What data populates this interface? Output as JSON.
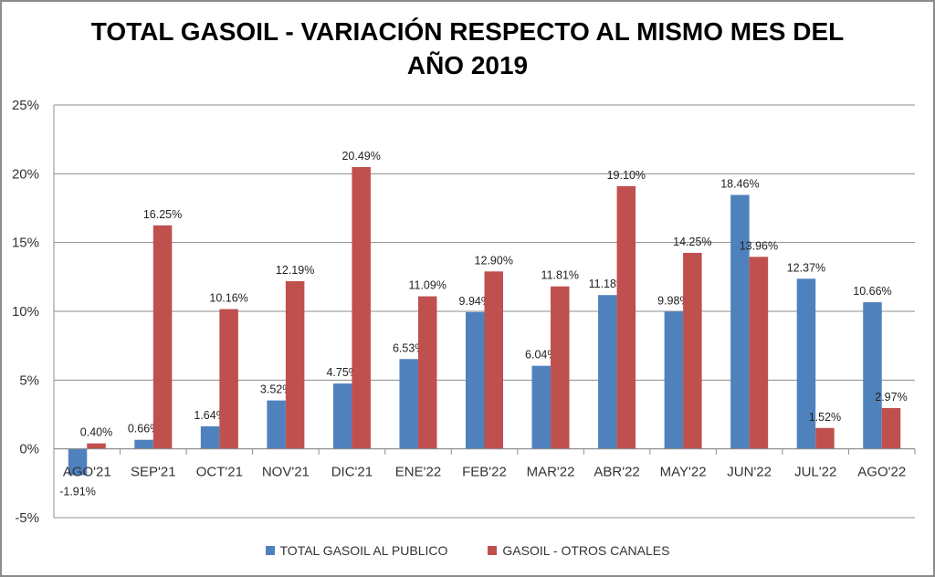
{
  "chart_data": {
    "type": "bar",
    "title_lines": [
      "TOTAL GASOIL - VARIACIÓN RESPECTO AL MISMO MES DEL",
      "AÑO 2019"
    ],
    "categories": [
      "AGO'21",
      "SEP'21",
      "OCT'21",
      "NOV'21",
      "DIC'21",
      "ENE'22",
      "FEB'22",
      "MAR'22",
      "ABR'22",
      "MAY'22",
      "JUN'22",
      "JUL'22",
      "AGO'22"
    ],
    "series": [
      {
        "name": "TOTAL GASOIL AL PUBLICO",
        "color": "#4f81bd",
        "values": [
          -1.91,
          0.66,
          1.64,
          3.52,
          4.75,
          6.53,
          9.94,
          6.04,
          11.18,
          9.98,
          18.46,
          12.37,
          10.66
        ],
        "labels": [
          "-1.91%",
          "0.66%",
          "1.64%",
          "3.52%",
          "4.75%",
          "6.53%",
          "9.94%",
          "6.04%",
          "11.18%",
          "9.98%",
          "18.46%",
          "12.37%",
          "10.66%"
        ]
      },
      {
        "name": "GASOIL - OTROS CANALES",
        "color": "#c0504d",
        "values": [
          0.4,
          16.25,
          10.16,
          12.19,
          20.49,
          11.09,
          12.9,
          11.81,
          19.1,
          14.25,
          13.96,
          1.52,
          2.97
        ],
        "labels": [
          "0.40%",
          "16.25%",
          "10.16%",
          "12.19%",
          "20.49%",
          "11.09%",
          "12.90%",
          "11.81%",
          "19.10%",
          "14.25%",
          "13.96%",
          "1.52%",
          "2.97%"
        ]
      }
    ],
    "yticks": [
      25,
      20,
      15,
      10,
      5,
      0,
      -5
    ],
    "ytick_labels": [
      "25%",
      "20%",
      "15%",
      "10%",
      "5%",
      "0%",
      "-5%"
    ],
    "ylim": [
      -5,
      25
    ],
    "xlabel": "",
    "ylabel": "",
    "grid": true,
    "legend": "bottom"
  }
}
